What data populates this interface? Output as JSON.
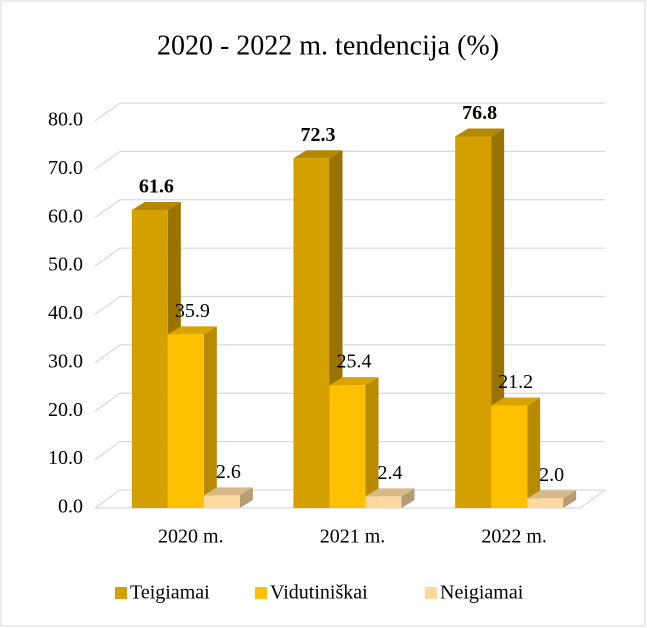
{
  "chart_data": {
    "type": "bar3d",
    "title": "2020 - 2022 m. tendencija (%)",
    "categories": [
      "2020 m.",
      "2021 m.",
      "2022 m."
    ],
    "series": [
      {
        "name": "Teigiamai",
        "color": "#D4A000",
        "values": [
          61.6,
          72.3,
          76.8
        ],
        "value_labels": [
          "61.6",
          "72.3",
          "76.8"
        ],
        "bold": true
      },
      {
        "name": "Vidutiniškai",
        "color": "#FFC000",
        "values": [
          35.9,
          25.4,
          21.2
        ],
        "value_labels": [
          "35.9",
          "25.4",
          "21.2"
        ]
      },
      {
        "name": "Neigiamai",
        "color": "#FDD9A0",
        "values": [
          2.6,
          2.4,
          2.0
        ],
        "value_labels": [
          "2.6",
          "2.4",
          "2.0"
        ]
      }
    ],
    "ylim": [
      0,
      80
    ],
    "yticks": [
      {
        "value": 0,
        "label": "0.0"
      },
      {
        "value": 10,
        "label": "10.0"
      },
      {
        "value": 20,
        "label": "20.0"
      },
      {
        "value": 30,
        "label": "30.0"
      },
      {
        "value": 40,
        "label": "40.0"
      },
      {
        "value": 50,
        "label": "50.0"
      },
      {
        "value": 60,
        "label": "60.0"
      },
      {
        "value": 70,
        "label": "70.0"
      },
      {
        "value": 80,
        "label": "80.0"
      }
    ],
    "grid": true,
    "legend": "bottom"
  }
}
